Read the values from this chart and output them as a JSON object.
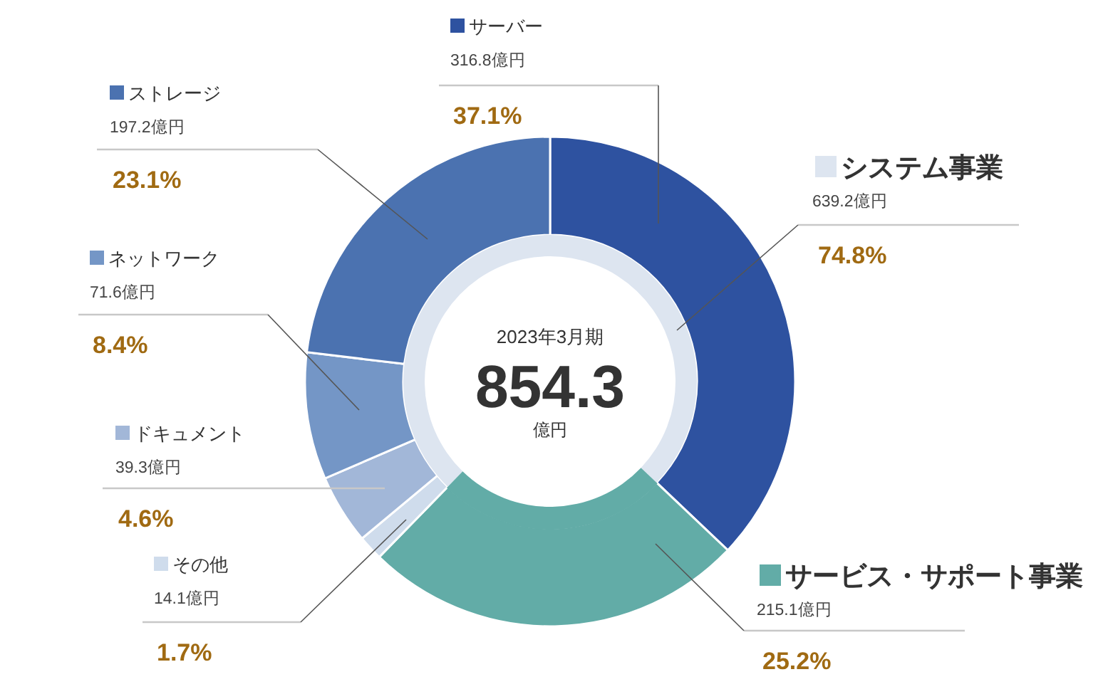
{
  "chart_data": [
    {
      "type": "donut",
      "categories": [
        "サーバー",
        null,
        "その他",
        "ドキュメント",
        "ネットワーク",
        "ストレージ"
      ],
      "values": [
        316.8,
        215.1,
        14.1,
        39.3,
        71.6,
        197.2
      ],
      "colors": [
        "#2e52a0",
        "#62aca7",
        "#cfdcec",
        "#a2b7d8",
        "#7496c6",
        "#4b72b0"
      ],
      "value_labels": [
        "316.8億円",
        null,
        "14.1億円",
        "39.3億円",
        "71.6億円",
        "197.2億円"
      ],
      "legend": "left",
      "annotations": [
        "37.1%",
        "1.7%",
        "4.6%",
        "8.4%",
        "23.1%"
      ]
    },
    {
      "type": "donut",
      "title": "2023年3月期",
      "categories": [
        "システム事業",
        "サービス・サポート事業"
      ],
      "values": [
        639.2,
        215.1
      ],
      "colors": [
        "#dde5f0",
        "#62aca7"
      ],
      "value_labels": [
        "639.2億円",
        "215.1億円"
      ],
      "legend": "right",
      "annotations": [
        "74.8%",
        "25.2%",
        "854.3",
        "億円"
      ]
    }
  ]
}
